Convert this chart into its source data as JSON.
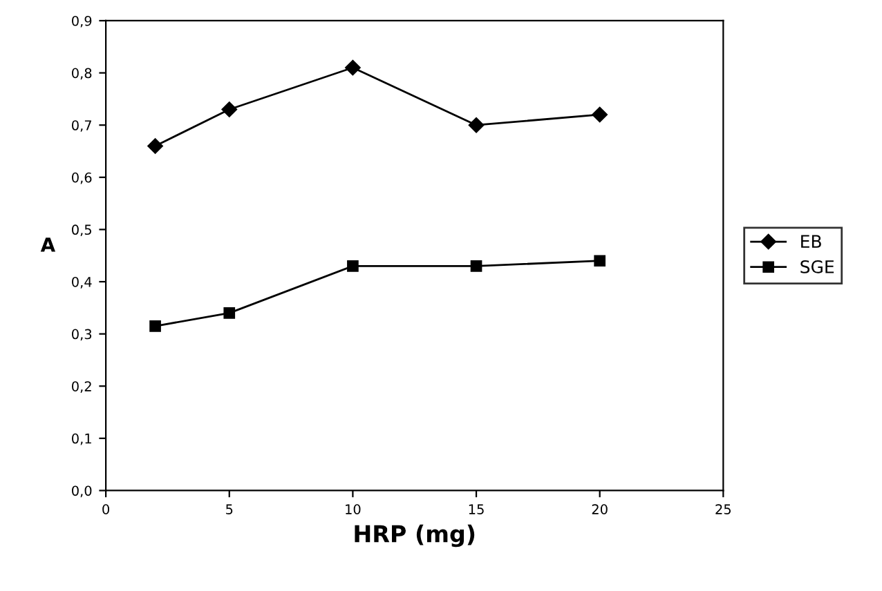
{
  "chart_data": {
    "type": "line",
    "xlabel": "HRP (mg)",
    "ylabel": "A",
    "x": [
      2,
      5,
      10,
      15,
      20
    ],
    "series": [
      {
        "name": "EB",
        "color": "#000000",
        "marker": "diamond",
        "values": [
          0.66,
          0.73,
          0.81,
          0.7,
          0.72
        ]
      },
      {
        "name": "SGE",
        "color": "#000000",
        "marker": "square",
        "values": [
          0.315,
          0.34,
          0.43,
          0.43,
          0.44
        ]
      }
    ],
    "xlim": [
      0,
      25
    ],
    "xticks": [
      0,
      5,
      10,
      15,
      20,
      25
    ],
    "ylim": [
      0,
      0.9
    ],
    "yticks": [
      {
        "value": 0,
        "label": "0,0"
      },
      {
        "value": 0.1,
        "label": "0,1"
      },
      {
        "value": 0.2,
        "label": "0,2"
      },
      {
        "value": 0.3,
        "label": "0,3"
      },
      {
        "value": 0.4,
        "label": "0,4"
      },
      {
        "value": 0.5,
        "label": "0,5"
      },
      {
        "value": 0.6,
        "label": "0,6"
      },
      {
        "value": 0.7,
        "label": "0,7"
      },
      {
        "value": 0.8,
        "label": "0,8"
      },
      {
        "value": 0.9,
        "label": "0,9"
      }
    ],
    "grid": false,
    "legend": "right",
    "line_style": "solid"
  }
}
